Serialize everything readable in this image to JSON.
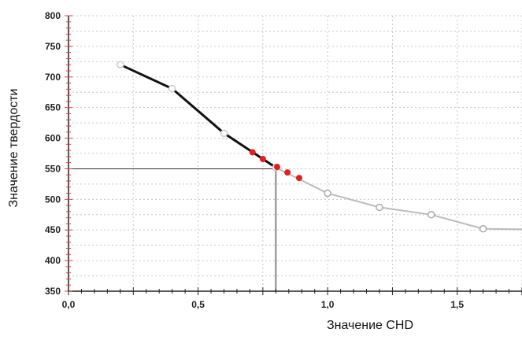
{
  "chart_data": {
    "type": "line",
    "title": "",
    "xlabel": "Значение CHD",
    "ylabel": "Значение твердости",
    "xlim": [
      0.0,
      1.75
    ],
    "ylim": [
      350,
      800
    ],
    "x_ticks": [
      "0,0",
      "0,5",
      "1,0",
      "1,5"
    ],
    "x_tick_values": [
      0.0,
      0.5,
      1.0,
      1.5
    ],
    "y_ticks": [
      "350",
      "400",
      "450",
      "500",
      "550",
      "600",
      "650",
      "700",
      "750",
      "800"
    ],
    "y_tick_values": [
      350,
      400,
      450,
      500,
      550,
      600,
      650,
      700,
      750,
      800
    ],
    "grid": true,
    "series": [
      {
        "color": "#111111",
        "marker": "circle",
        "points": [
          {
            "x": 0.2,
            "y": 720
          },
          {
            "x": 0.4,
            "y": 681
          },
          {
            "x": 0.6,
            "y": 608
          },
          {
            "x": 0.8,
            "y": 552
          }
        ]
      },
      {
        "color": "#bbbbbb",
        "marker": "circle",
        "points": [
          {
            "x": 0.8,
            "y": 552
          },
          {
            "x": 1.0,
            "y": 510
          },
          {
            "x": 1.2,
            "y": 487
          },
          {
            "x": 1.4,
            "y": 475
          },
          {
            "x": 1.6,
            "y": 452
          },
          {
            "x": 1.75,
            "y": 451
          }
        ]
      },
      {
        "color": "#e02020",
        "marker": "dot",
        "points": [
          {
            "x": 0.71,
            "y": 577
          },
          {
            "x": 0.75,
            "y": 566
          },
          {
            "x": 0.805,
            "y": 553
          },
          {
            "x": 0.845,
            "y": 544
          },
          {
            "x": 0.89,
            "y": 535
          }
        ]
      }
    ],
    "reference_lines": {
      "y_value": 550,
      "x_value": 0.8
    },
    "colors": {
      "axis": "#222222",
      "grid": "#c8c8c8",
      "y_axis_ticks": "#d94040",
      "reference": "#333333"
    }
  }
}
